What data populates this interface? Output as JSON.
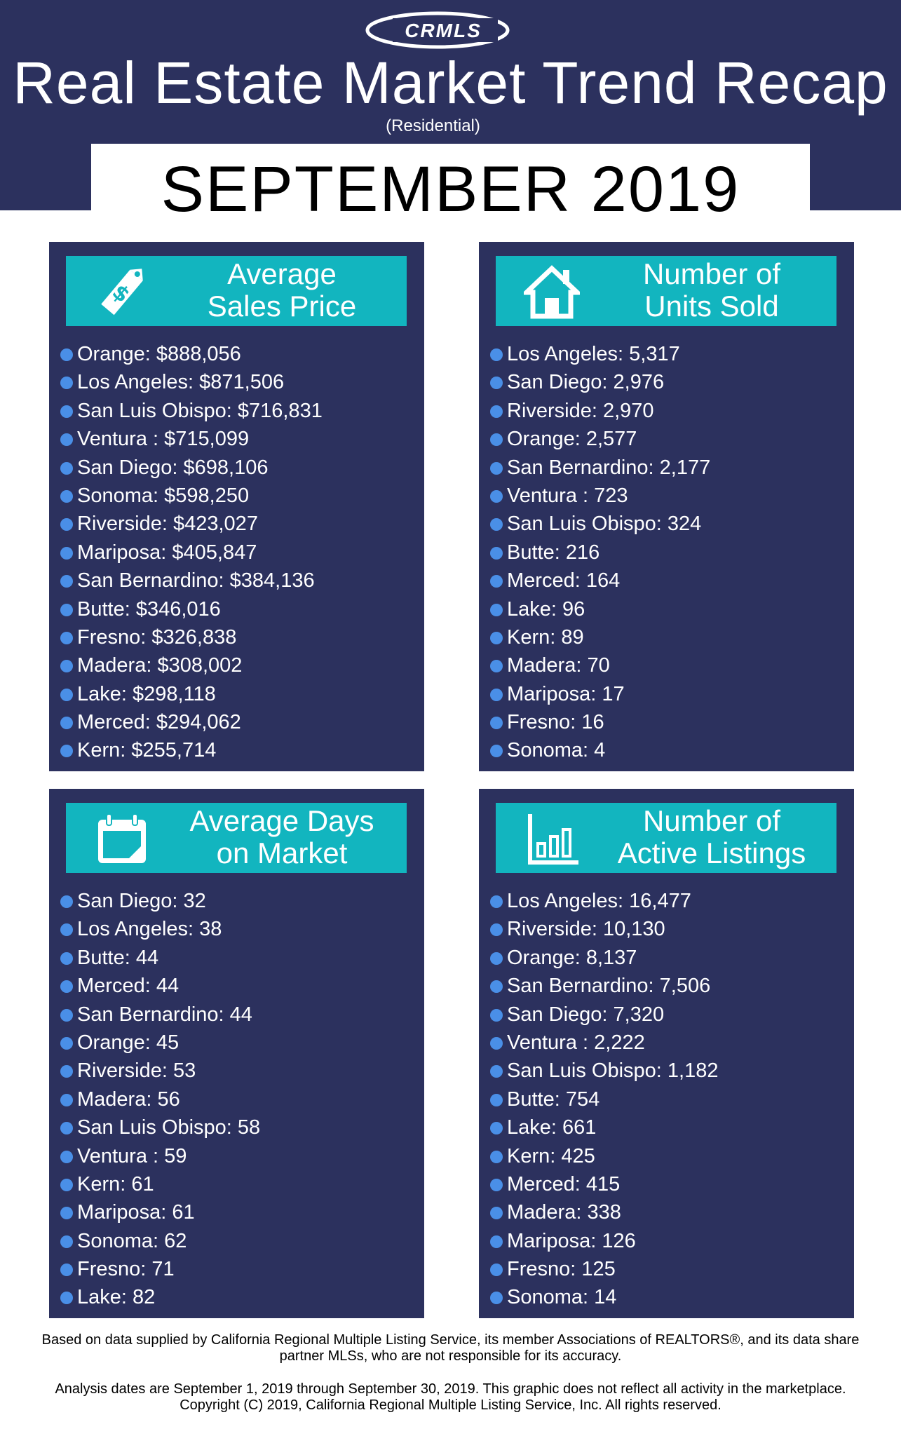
{
  "logo_text": "CRMLS",
  "title": "Real Estate Market Trend Recap",
  "subtitle": "(Residential)",
  "month": "SEPTEMBER 2019",
  "colors": {
    "navy": "#2c315e",
    "teal": "#12b5bf",
    "bullet": "#4a8fe7"
  },
  "panels": {
    "avg_price": {
      "title_line1": "Average",
      "title_line2": "Sales Price",
      "icon": "price-tag-icon",
      "items": [
        "Orange: $888,056",
        "Los Angeles: $871,506",
        "San Luis Obispo: $716,831",
        "Ventura : $715,099",
        "San Diego: $698,106",
        "Sonoma: $598,250",
        "Riverside: $423,027",
        "Mariposa: $405,847",
        "San Bernardino: $384,136",
        "Butte: $346,016",
        "Fresno: $326,838",
        "Madera: $308,002",
        "Lake: $298,118",
        "Merced: $294,062",
        "Kern: $255,714"
      ]
    },
    "units_sold": {
      "title_line1": "Number of",
      "title_line2": "Units Sold",
      "icon": "house-icon",
      "items": [
        "Los Angeles: 5,317",
        "San Diego: 2,976",
        "Riverside: 2,970",
        "Orange: 2,577",
        "San Bernardino: 2,177",
        "Ventura : 723",
        "San Luis Obispo: 324",
        "Butte: 216",
        "Merced: 164",
        "Lake: 96",
        "Kern: 89",
        "Madera: 70",
        "Mariposa: 17",
        "Fresno: 16",
        "Sonoma: 4"
      ]
    },
    "days_on_market": {
      "title_line1": "Average Days",
      "title_line2": "on Market",
      "icon": "calendar-icon",
      "items": [
        "San Diego: 32",
        "Los Angeles: 38",
        "Butte: 44",
        "Merced: 44",
        "San Bernardino: 44",
        "Orange: 45",
        "Riverside: 53",
        "Madera: 56",
        "San Luis Obispo: 58",
        "Ventura : 59",
        "Kern: 61",
        "Mariposa: 61",
        "Sonoma: 62",
        "Fresno: 71",
        "Lake: 82"
      ]
    },
    "active_listings": {
      "title_line1": "Number of",
      "title_line2": "Active Listings",
      "icon": "bar-chart-icon",
      "items": [
        "Los Angeles: 16,477",
        "Riverside: 10,130",
        "Orange: 8,137",
        "San Bernardino: 7,506",
        "San Diego: 7,320",
        "Ventura : 2,222",
        "San Luis Obispo: 1,182",
        "Butte: 754",
        "Lake: 661",
        "Kern: 425",
        "Merced: 415",
        "Madera: 338",
        "Mariposa: 126",
        "Fresno: 125",
        "Sonoma: 14"
      ]
    }
  },
  "footer": {
    "disclaimer": "Based on data supplied by California Regional Multiple Listing Service, its member Associations of REALTORS®, and its data share partner MLSs, who are not responsible for its accuracy.",
    "analysis": "Analysis dates are September 1, 2019 through September 30, 2019. This graphic does not reflect all activity in the marketplace. Copyright (C) 2019, California Regional Multiple Listing Service, Inc. All rights reserved."
  }
}
